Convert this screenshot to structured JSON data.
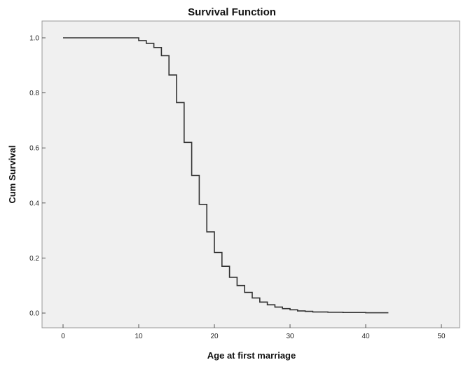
{
  "chart_data": {
    "type": "line",
    "title": "Survival Function",
    "xlabel": "Age at first marriage",
    "ylabel": "Cum Survival",
    "xlim": [
      0,
      50
    ],
    "ylim": [
      0,
      1.0
    ],
    "x_ticks": [
      "0",
      "10",
      "20",
      "30",
      "40",
      "50"
    ],
    "y_ticks": [
      "0.0",
      "0.2",
      "0.4",
      "0.6",
      "0.8",
      "1.0"
    ],
    "grid": false,
    "plot_background": "#f0f0f0",
    "line_color": "#333333",
    "step": true,
    "series": [
      {
        "x": [
          0,
          10,
          11,
          12,
          13,
          14,
          15,
          16,
          17,
          18,
          19,
          20,
          21,
          22,
          23,
          24,
          25,
          26,
          27,
          28,
          29,
          30,
          31,
          32,
          33,
          35,
          37,
          40,
          43
        ],
        "values": [
          1.0,
          0.99,
          0.98,
          0.965,
          0.935,
          0.865,
          0.765,
          0.62,
          0.5,
          0.395,
          0.295,
          0.22,
          0.17,
          0.13,
          0.1,
          0.075,
          0.055,
          0.04,
          0.03,
          0.022,
          0.016,
          0.012,
          0.008,
          0.006,
          0.004,
          0.003,
          0.002,
          0.001,
          0.001
        ]
      }
    ]
  }
}
